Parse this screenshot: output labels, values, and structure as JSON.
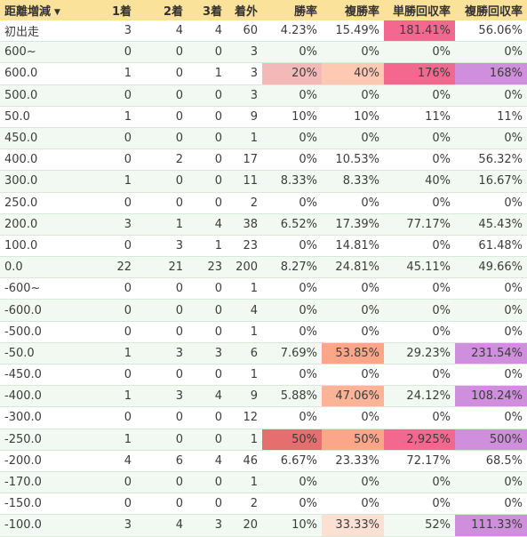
{
  "table": {
    "columns": [
      "距離増減",
      "1着",
      "2着",
      "3着",
      "着外",
      "勝率",
      "複勝率",
      "単勝回収率",
      "複勝回収率"
    ],
    "sort_icon": "caret-down-icon",
    "rows": [
      {
        "cells": [
          "初出走",
          "3",
          "4",
          "4",
          "60",
          "4.23%",
          "15.49%",
          "181.41%",
          "56.06%"
        ],
        "hl": [
          null,
          null,
          null,
          null,
          null,
          null,
          null,
          "#f4688f",
          null
        ]
      },
      {
        "cells": [
          "600~",
          "0",
          "0",
          "0",
          "3",
          "0%",
          "0%",
          "0%",
          "0%"
        ],
        "hl": [
          null,
          null,
          null,
          null,
          null,
          null,
          null,
          null,
          null
        ]
      },
      {
        "cells": [
          "600.0",
          "1",
          "0",
          "1",
          "3",
          "20%",
          "40%",
          "176%",
          "168%"
        ],
        "hl": [
          null,
          null,
          null,
          null,
          null,
          "#f3b8b8",
          "#fdc9b3",
          "#f4688f",
          "#cf8fdc"
        ]
      },
      {
        "cells": [
          "500.0",
          "0",
          "0",
          "0",
          "3",
          "0%",
          "0%",
          "0%",
          "0%"
        ],
        "hl": [
          null,
          null,
          null,
          null,
          null,
          null,
          null,
          null,
          null
        ]
      },
      {
        "cells": [
          "50.0",
          "1",
          "0",
          "0",
          "9",
          "10%",
          "10%",
          "11%",
          "11%"
        ],
        "hl": [
          null,
          null,
          null,
          null,
          null,
          null,
          null,
          null,
          null
        ]
      },
      {
        "cells": [
          "450.0",
          "0",
          "0",
          "0",
          "1",
          "0%",
          "0%",
          "0%",
          "0%"
        ],
        "hl": [
          null,
          null,
          null,
          null,
          null,
          null,
          null,
          null,
          null
        ]
      },
      {
        "cells": [
          "400.0",
          "0",
          "2",
          "0",
          "17",
          "0%",
          "10.53%",
          "0%",
          "56.32%"
        ],
        "hl": [
          null,
          null,
          null,
          null,
          null,
          null,
          null,
          null,
          null
        ]
      },
      {
        "cells": [
          "300.0",
          "1",
          "0",
          "0",
          "11",
          "8.33%",
          "8.33%",
          "40%",
          "16.67%"
        ],
        "hl": [
          null,
          null,
          null,
          null,
          null,
          null,
          null,
          null,
          null
        ]
      },
      {
        "cells": [
          "250.0",
          "0",
          "0",
          "0",
          "2",
          "0%",
          "0%",
          "0%",
          "0%"
        ],
        "hl": [
          null,
          null,
          null,
          null,
          null,
          null,
          null,
          null,
          null
        ]
      },
      {
        "cells": [
          "200.0",
          "3",
          "1",
          "4",
          "38",
          "6.52%",
          "17.39%",
          "77.17%",
          "45.43%"
        ],
        "hl": [
          null,
          null,
          null,
          null,
          null,
          null,
          null,
          null,
          null
        ]
      },
      {
        "cells": [
          "100.0",
          "0",
          "3",
          "1",
          "23",
          "0%",
          "14.81%",
          "0%",
          "61.48%"
        ],
        "hl": [
          null,
          null,
          null,
          null,
          null,
          null,
          null,
          null,
          null
        ]
      },
      {
        "cells": [
          "0.0",
          "22",
          "21",
          "23",
          "200",
          "8.27%",
          "24.81%",
          "45.11%",
          "49.66%"
        ],
        "hl": [
          null,
          null,
          null,
          null,
          null,
          null,
          null,
          null,
          null
        ]
      },
      {
        "cells": [
          "-600~",
          "0",
          "0",
          "0",
          "1",
          "0%",
          "0%",
          "0%",
          "0%"
        ],
        "hl": [
          null,
          null,
          null,
          null,
          null,
          null,
          null,
          null,
          null
        ]
      },
      {
        "cells": [
          "-600.0",
          "0",
          "0",
          "0",
          "4",
          "0%",
          "0%",
          "0%",
          "0%"
        ],
        "hl": [
          null,
          null,
          null,
          null,
          null,
          null,
          null,
          null,
          null
        ]
      },
      {
        "cells": [
          "-500.0",
          "0",
          "0",
          "0",
          "1",
          "0%",
          "0%",
          "0%",
          "0%"
        ],
        "hl": [
          null,
          null,
          null,
          null,
          null,
          null,
          null,
          null,
          null
        ]
      },
      {
        "cells": [
          "-50.0",
          "1",
          "3",
          "3",
          "6",
          "7.69%",
          "53.85%",
          "29.23%",
          "231.54%"
        ],
        "hl": [
          null,
          null,
          null,
          null,
          null,
          null,
          "#fba688",
          null,
          "#cf8fdc"
        ]
      },
      {
        "cells": [
          "-450.0",
          "0",
          "0",
          "0",
          "1",
          "0%",
          "0%",
          "0%",
          "0%"
        ],
        "hl": [
          null,
          null,
          null,
          null,
          null,
          null,
          null,
          null,
          null
        ]
      },
      {
        "cells": [
          "-400.0",
          "1",
          "3",
          "4",
          "9",
          "5.88%",
          "47.06%",
          "24.12%",
          "108.24%"
        ],
        "hl": [
          null,
          null,
          null,
          null,
          null,
          null,
          "#fbb497",
          null,
          "#cf8fdc"
        ]
      },
      {
        "cells": [
          "-300.0",
          "0",
          "0",
          "0",
          "12",
          "0%",
          "0%",
          "0%",
          "0%"
        ],
        "hl": [
          null,
          null,
          null,
          null,
          null,
          null,
          null,
          null,
          null
        ]
      },
      {
        "cells": [
          "-250.0",
          "1",
          "0",
          "0",
          "1",
          "50%",
          "50%",
          "2,925%",
          "500%"
        ],
        "hl": [
          null,
          null,
          null,
          null,
          null,
          "#e56f6f",
          "#fba688",
          "#f4688f",
          "#cf8fdc"
        ]
      },
      {
        "cells": [
          "-200.0",
          "4",
          "6",
          "4",
          "46",
          "6.67%",
          "23.33%",
          "72.17%",
          "68.5%"
        ],
        "hl": [
          null,
          null,
          null,
          null,
          null,
          null,
          null,
          null,
          null
        ]
      },
      {
        "cells": [
          "-170.0",
          "0",
          "0",
          "0",
          "1",
          "0%",
          "0%",
          "0%",
          "0%"
        ],
        "hl": [
          null,
          null,
          null,
          null,
          null,
          null,
          null,
          null,
          null
        ]
      },
      {
        "cells": [
          "-150.0",
          "0",
          "0",
          "0",
          "2",
          "0%",
          "0%",
          "0%",
          "0%"
        ],
        "hl": [
          null,
          null,
          null,
          null,
          null,
          null,
          null,
          null,
          null
        ]
      },
      {
        "cells": [
          "-100.0",
          "3",
          "4",
          "3",
          "20",
          "10%",
          "33.33%",
          "52%",
          "111.33%"
        ],
        "hl": [
          null,
          null,
          null,
          null,
          null,
          null,
          "#fde0d4",
          null,
          "#cf8fdc"
        ]
      }
    ]
  }
}
